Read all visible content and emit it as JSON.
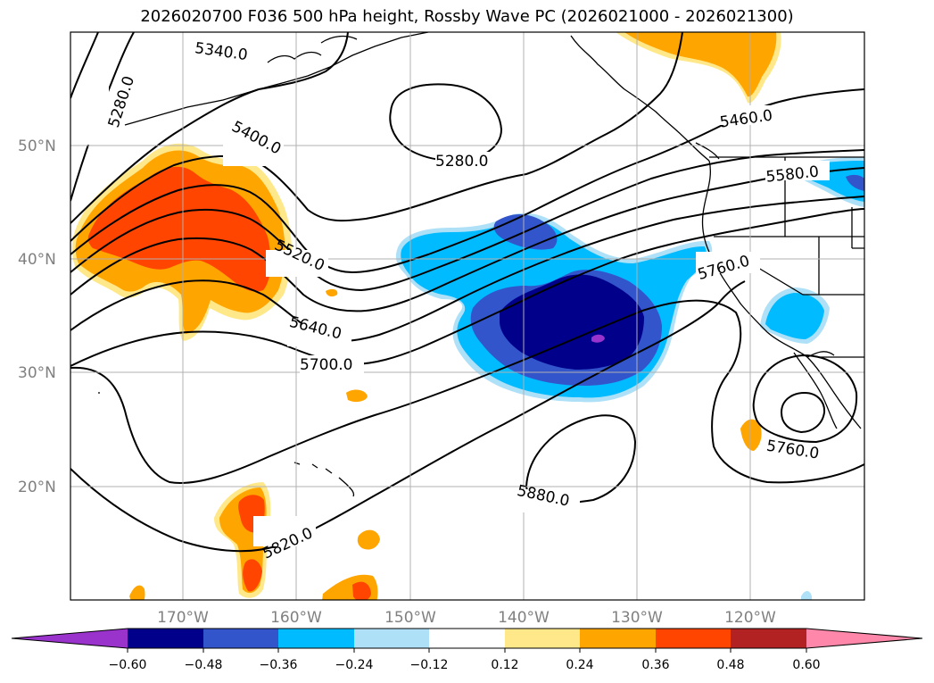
{
  "title": "2026020700 F036 500 hPa height, Rossby Wave PC (2026021000 - 2026021300)",
  "map": {
    "lat_ticks": [
      "50°N",
      "40°N",
      "30°N",
      "20°N"
    ],
    "lon_ticks": [
      "170°W",
      "160°W",
      "150°W",
      "140°W",
      "130°W",
      "120°W"
    ],
    "contour_labels": [
      "5340.0",
      "5280.0",
      "5400.0",
      "5280.0",
      "5460.0",
      "5580.0",
      "5520.0",
      "5760.0",
      "5640.0",
      "5700.0",
      "5760.0",
      "5820.0",
      "5880.0"
    ],
    "colors": {
      "neg_060": "#9933cc",
      "neg_048": "#00008b",
      "neg_036": "#3355cc",
      "neg_024": "#00bbff",
      "neg_012": "#aee0f7",
      "zero": "#ffffff",
      "pos_012": "#ffe88a",
      "pos_024": "#ffa500",
      "pos_036": "#ff4500",
      "pos_048": "#b22222",
      "pos_060": "#ff88aa"
    }
  },
  "colorbar": {
    "tick_labels": [
      "−0.60",
      "−0.48",
      "−0.36",
      "−0.24",
      "−0.12",
      "0.12",
      "0.24",
      "0.36",
      "0.48",
      "0.60"
    ]
  }
}
